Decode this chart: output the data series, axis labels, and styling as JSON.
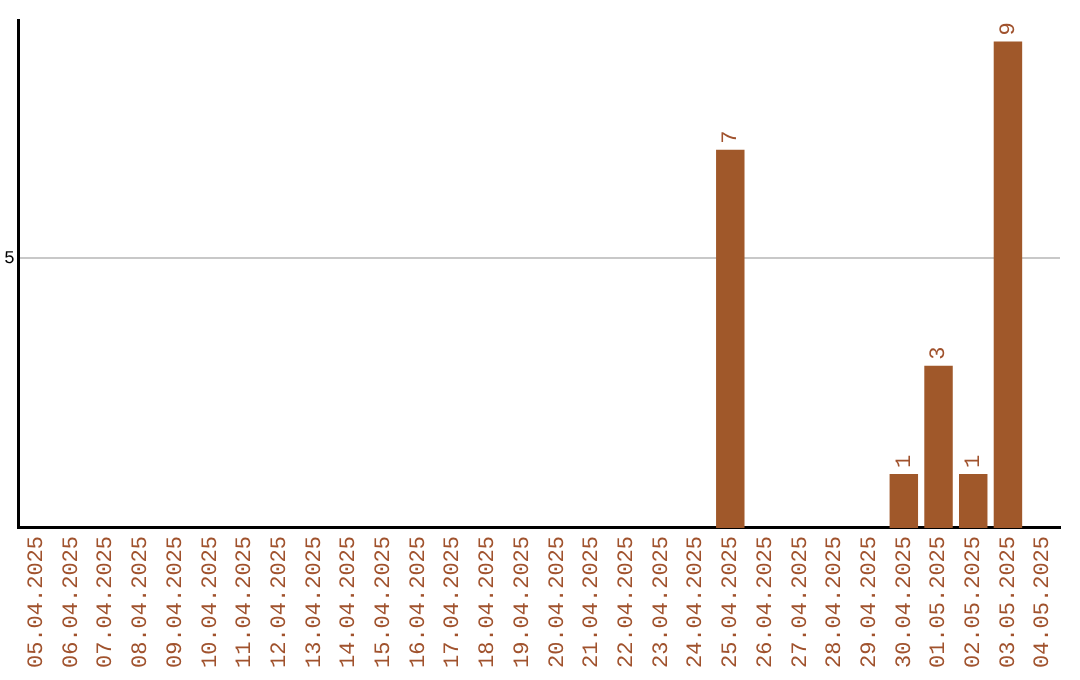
{
  "chart_data": {
    "type": "bar",
    "categories": [
      "05.04.2025",
      "06.04.2025",
      "07.04.2025",
      "08.04.2025",
      "09.04.2025",
      "10.04.2025",
      "11.04.2025",
      "12.04.2025",
      "13.04.2025",
      "14.04.2025",
      "15.04.2025",
      "16.04.2025",
      "17.04.2025",
      "18.04.2025",
      "19.04.2025",
      "20.04.2025",
      "21.04.2025",
      "22.04.2025",
      "23.04.2025",
      "24.04.2025",
      "25.04.2025",
      "26.04.2025",
      "27.04.2025",
      "28.04.2025",
      "29.04.2025",
      "30.04.2025",
      "01.05.2025",
      "02.05.2025",
      "03.05.2025",
      "04.05.2025"
    ],
    "values": [
      null,
      null,
      null,
      null,
      null,
      null,
      null,
      null,
      null,
      null,
      null,
      null,
      null,
      null,
      null,
      null,
      null,
      null,
      null,
      null,
      7,
      null,
      null,
      null,
      null,
      1,
      3,
      1,
      9,
      null
    ],
    "data_labels": true,
    "color": "#a0582a",
    "ylim": [
      0,
      9.4
    ],
    "yticks": [
      5
    ],
    "grid": "y",
    "legend": false
  }
}
